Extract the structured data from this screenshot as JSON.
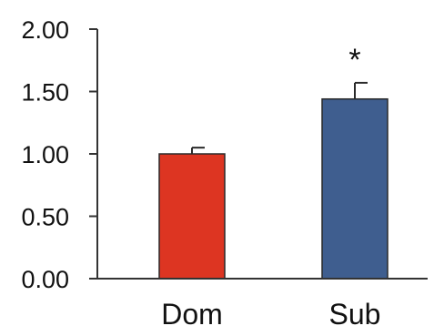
{
  "chart_data": {
    "type": "bar",
    "categories": [
      "Dom",
      "Sub"
    ],
    "values": [
      1.0,
      1.44
    ],
    "error_up": [
      0.05,
      0.13
    ],
    "colors": [
      "#dd3522",
      "#3f5e8f"
    ],
    "ylim": [
      0,
      2
    ],
    "yticks": [
      "0.00",
      "0.50",
      "1.00",
      "1.50",
      "2.00"
    ],
    "annotations": [
      "",
      "*"
    ],
    "title": "",
    "xlabel": "",
    "ylabel": "",
    "grid": false,
    "legend": false
  }
}
